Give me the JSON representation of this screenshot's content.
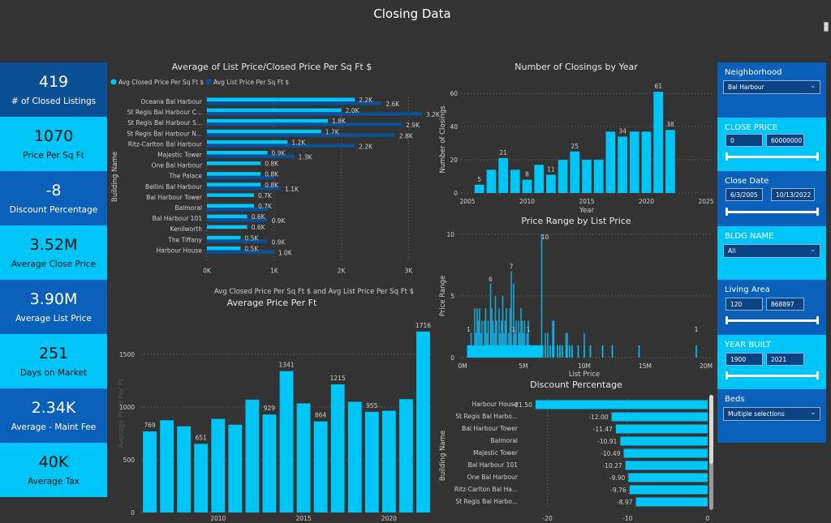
{
  "page": {
    "title": "Closing Data"
  },
  "kpis": [
    {
      "value": "419",
      "label": "# of Closed Listings"
    },
    {
      "value": "1070",
      "label": "Price Per Sq Ft"
    },
    {
      "value": "-8",
      "label": "Discount Percentage"
    },
    {
      "value": "3.52M",
      "label": "Average Close Price"
    },
    {
      "value": "3.90M",
      "label": "Average List Price"
    },
    {
      "value": "251",
      "label": "Days on Market"
    },
    {
      "value": "2.34K",
      "label": "Average - Maint Fee"
    },
    {
      "value": "40K",
      "label": "Average Tax"
    }
  ],
  "filters": {
    "neighborhood": {
      "title": "Neighborhood",
      "selected": "Bal Harbour",
      "chevron": "chevron-down-icon"
    },
    "close_price": {
      "title": "CLOSE PRICE",
      "min": "0",
      "max": "60000000"
    },
    "close_date": {
      "title": "Close Date",
      "min": "6/3/2005",
      "max": "10/13/2022"
    },
    "bldg_name": {
      "title": "BLDG NAME",
      "selected": "All"
    },
    "living_area": {
      "title": "Living Area",
      "min": "120",
      "max": "868897"
    },
    "year_built": {
      "title": "YEAR BUILT",
      "min": "1900",
      "max": "2021"
    },
    "beds": {
      "title": "Beds",
      "selected": "Multiple selections"
    }
  },
  "colors": {
    "light_series": "#00c5f7",
    "dark_series": "#0b4f94",
    "background": "#333333",
    "panel_blue": "#0a60b8"
  },
  "chart_data": [
    {
      "id": "list_closed_ppsf",
      "type": "bar",
      "orientation": "horizontal",
      "title": "Average of List Price/Closed Price Per Sq Ft $",
      "xlabel": "Avg Closed Price Per Sq Ft $ and Avg List Price Per Sq Ft $",
      "ylabel": "Building Name",
      "legend_position": "top-left",
      "xlim": [
        0,
        3200
      ],
      "xticks": [
        "0K",
        "1K",
        "2K",
        "3K"
      ],
      "xtick_values": [
        0,
        1000,
        2000,
        3000
      ],
      "categories": [
        "Oceana Bal Harbour",
        "St Regis Bal Harbour C...",
        "St Regis Bal Harbour S...",
        "St Regis Bal Harbour N...",
        "Ritz-Carlton Bal Harbour",
        "Majestic Tower",
        "One Bal Harbour",
        "The Palace",
        "Bellini Bal Harbour",
        "Bal Harbour Tower",
        "Balmoral",
        "Bal Harbour 101",
        "Kenilworth",
        "The Tiffany",
        "Harbour House"
      ],
      "series": [
        {
          "name": "Avg Closed Price Per Sq Ft $",
          "color": "#00c5f7",
          "values": [
            2200,
            2000,
            1800,
            1700,
            1200,
            900,
            800,
            800,
            800,
            700,
            700,
            600,
            600,
            500,
            500
          ],
          "labels": [
            "2.2K",
            "2.0K",
            "1.8K",
            "1.7K",
            "1.2K",
            "0.9K",
            "0.8K",
            "0.8K",
            "0.8K",
            "0.7K",
            "0.7K",
            "0.6K",
            "0.6K",
            "0.5K",
            "0.5K"
          ]
        },
        {
          "name": "Avg List Price Per Sq Ft $",
          "color": "#0b4f94",
          "values": [
            2600,
            3200,
            2900,
            2800,
            2200,
            1300,
            null,
            1000,
            1100,
            null,
            900,
            900,
            null,
            900,
            1000
          ],
          "labels": [
            "2.6K",
            "3.2K",
            "2.9K",
            "2.8K",
            "2.2K",
            "1.3K",
            "",
            "",
            "1.1K",
            "",
            "",
            "0.9K",
            "",
            "0.9K",
            "1.0K"
          ]
        }
      ]
    },
    {
      "id": "closings_by_year",
      "type": "bar",
      "title": "Number of Closings by Year",
      "xlabel": "Year",
      "ylabel": "Number of Closings",
      "xlim": [
        2005,
        2025
      ],
      "ylim": [
        0,
        65
      ],
      "yticks": [
        0,
        20,
        40,
        60
      ],
      "xticks": [
        2005,
        2010,
        2015,
        2020,
        2025
      ],
      "x": [
        2006,
        2007,
        2008,
        2009,
        2010,
        2011,
        2012,
        2013,
        2014,
        2015,
        2016,
        2017,
        2018,
        2019,
        2020,
        2021,
        2022
      ],
      "values": [
        5,
        14,
        21,
        14,
        8,
        17,
        11,
        20,
        25,
        20,
        20,
        37,
        34,
        37,
        37,
        61,
        38
      ],
      "data_labels": [
        "5",
        "",
        "21",
        "",
        "8",
        "",
        "11",
        "",
        "25",
        "",
        "",
        "",
        "34",
        "",
        "",
        "61",
        "38"
      ]
    },
    {
      "id": "price_range_by_list_price",
      "type": "bar",
      "title": "Price Range by List Price",
      "xlabel": "List Price",
      "ylabel": "Price Range",
      "xlim": [
        0,
        20
      ],
      "x_unit": "M",
      "ylim": [
        0,
        10
      ],
      "yticks": [
        0,
        5,
        10
      ],
      "xticks": [
        "0M",
        "5M",
        "10M",
        "15M",
        "20M"
      ],
      "xtick_values": [
        0,
        5,
        10,
        15,
        20
      ],
      "x": [
        0.5,
        0.7,
        0.9,
        1.0,
        1.1,
        1.2,
        1.3,
        1.4,
        1.5,
        1.6,
        1.7,
        1.8,
        1.9,
        2.0,
        2.1,
        2.2,
        2.3,
        2.4,
        2.5,
        2.6,
        2.7,
        2.8,
        2.9,
        3.0,
        3.1,
        3.2,
        3.3,
        3.4,
        3.5,
        3.6,
        3.7,
        3.8,
        3.9,
        4.0,
        4.1,
        4.2,
        4.3,
        4.4,
        4.5,
        4.6,
        4.7,
        4.8,
        4.9,
        5.0,
        5.1,
        5.2,
        5.3,
        5.4,
        5.5,
        5.6,
        5.8,
        6.0,
        6.2,
        6.4,
        6.5,
        6.8,
        7.0,
        7.2,
        7.4,
        7.5,
        7.8,
        8.0,
        8.2,
        8.5,
        8.6,
        8.8,
        9.0,
        9.5,
        10.0,
        10.5,
        11.5,
        12.3,
        14.5,
        19.2
      ],
      "values": [
        1,
        2,
        1,
        4,
        2,
        4,
        3,
        4,
        2,
        3,
        1,
        3,
        4,
        2,
        3,
        1,
        6,
        4,
        3,
        2,
        5,
        3,
        1,
        4,
        2,
        3,
        5,
        2,
        3,
        4,
        1,
        2,
        4,
        7,
        1,
        6,
        2,
        3,
        1,
        3,
        2,
        4,
        3,
        2,
        3,
        1,
        2,
        3,
        1,
        1,
        1,
        1,
        1,
        1,
        10,
        2,
        2,
        1,
        3,
        3,
        1,
        1,
        1,
        2,
        2,
        1,
        1,
        1,
        2,
        1,
        1,
        1,
        1,
        1
      ],
      "data_labels": [
        {
          "x": 0.5,
          "text": "1"
        },
        {
          "x": 2.3,
          "text": "6"
        },
        {
          "x": 4.0,
          "text": "7"
        },
        {
          "x": 4.2,
          "text": "1"
        },
        {
          "x": 5.4,
          "text": "1"
        },
        {
          "x": 6.5,
          "text": "10"
        },
        {
          "x": 19.2,
          "text": "1"
        }
      ]
    },
    {
      "id": "average_price_per_ft",
      "type": "bar",
      "title": "Average Price Per Ft",
      "xlabel": "",
      "ylabel": "Average Price Per Ft",
      "ylim": [
        0,
        1800
      ],
      "yticks": [
        0,
        500,
        1000,
        1500
      ],
      "xticks": [
        2010,
        2015,
        2020
      ],
      "x": [
        2006,
        2007,
        2008,
        2009,
        2010,
        2011,
        2012,
        2013,
        2014,
        2015,
        2016,
        2017,
        2018,
        2019,
        2020,
        2021,
        2022
      ],
      "values": [
        769,
        875,
        818,
        651,
        888,
        833,
        1070,
        929,
        1341,
        1035,
        864,
        1215,
        1050,
        955,
        965,
        1075,
        1716
      ],
      "data_labels": [
        "769",
        "",
        "",
        "651",
        "",
        "",
        "",
        "929",
        "1341",
        "",
        "864",
        "1215",
        "",
        "955",
        "",
        "",
        "1716"
      ]
    },
    {
      "id": "discount_percentage",
      "type": "bar",
      "orientation": "horizontal",
      "title": "Discount Percentage",
      "ylabel": "Building Name",
      "xlim": [
        -22.5,
        0
      ],
      "xticks": [
        -20,
        -10,
        0
      ],
      "categories": [
        "Harbour House",
        "St Regis Bal Harbo...",
        "Bal Harbour Tower",
        "Balmoral",
        "Majestic Tower",
        "Bal Harbour 101",
        "One Bal Harbour",
        "Ritz-Carlton Bal Ha...",
        "St Regis Bal Harbo..."
      ],
      "values": [
        -21.5,
        -12.0,
        -11.47,
        -10.91,
        -10.49,
        -10.27,
        -9.9,
        -9.76,
        -8.97
      ],
      "labels": [
        "-21.50",
        "-12.00",
        "-11.47",
        "-10.91",
        "-10.49",
        "-10.27",
        "-9.90",
        "-9.76",
        "-8.97"
      ]
    }
  ]
}
